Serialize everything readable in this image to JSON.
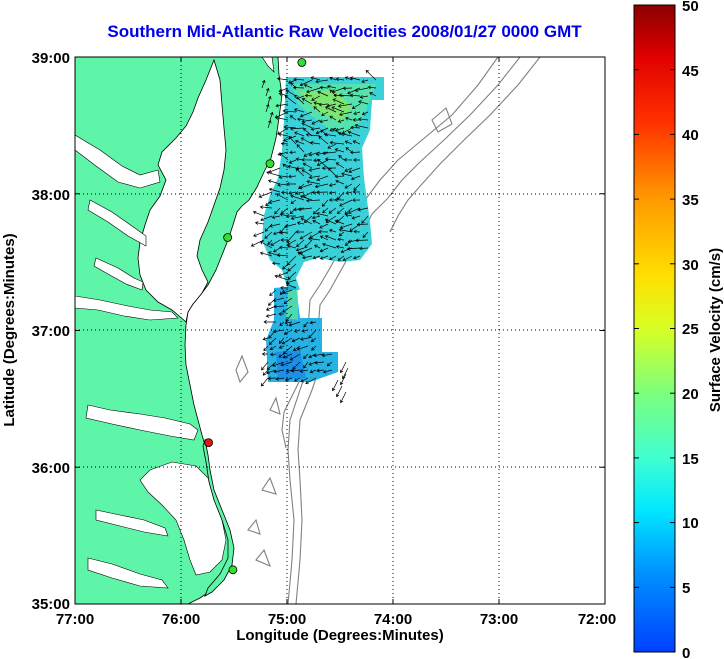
{
  "chart_data": {
    "type": "map",
    "title": "Southern Mid-Atlantic Raw Velocities 2008/01/27 0000 GMT",
    "xlabel": "Longitude (Degrees:Minutes)",
    "ylabel": "Latitude (Degrees:Minutes)",
    "x_ticks": [
      "77:00",
      "76:00",
      "75:00",
      "74:00",
      "73:00",
      "72:00"
    ],
    "y_ticks": [
      "39:00",
      "38:00",
      "37:00",
      "36:00",
      "35:00"
    ],
    "xlim": [
      -77,
      -72
    ],
    "ylim": [
      35,
      39
    ],
    "grid": true,
    "colorbar": {
      "label": "Surface Velocity (cm/s)",
      "range": [
        0,
        50
      ],
      "ticks": [
        "0",
        "5",
        "10",
        "15",
        "20",
        "25",
        "30",
        "35",
        "40",
        "45",
        "50"
      ]
    },
    "stations": [
      {
        "lon": -74.86,
        "lat": 38.96,
        "status": "green"
      },
      {
        "lon": -75.16,
        "lat": 38.22,
        "status": "green"
      },
      {
        "lon": -75.56,
        "lat": 37.68,
        "status": "green"
      },
      {
        "lon": -75.74,
        "lat": 36.18,
        "status": "red"
      },
      {
        "lon": -75.51,
        "lat": 35.25,
        "status": "green"
      }
    ]
  },
  "colors": {
    "land": "#5ef5a8",
    "title": "#0000e6",
    "bathymetry": "#808080",
    "station_ok": "#33dd33",
    "station_down": "#ee1111"
  }
}
